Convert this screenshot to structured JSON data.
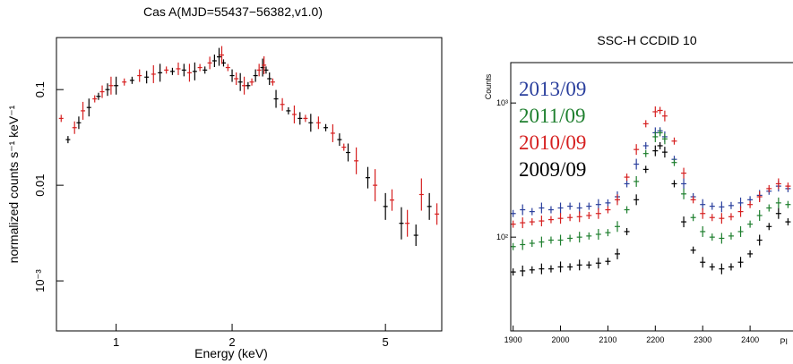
{
  "chart_data": [
    {
      "type": "scatter",
      "title": "Cas A(MJD=55437−56382,v1.0)",
      "xlabel": "Energy (keV)",
      "ylabel": "normalized counts s⁻¹ keV⁻¹",
      "x_scale": "log",
      "y_scale": "log",
      "xlim": [
        0.7,
        7.0
      ],
      "ylim": [
        0.0003,
        0.35
      ],
      "x_ticks": [
        1,
        2,
        5
      ],
      "x_tick_labels": [
        "1",
        "2",
        "5"
      ],
      "y_ticks": [
        0.001,
        0.01,
        0.1
      ],
      "y_tick_labels": [
        "10⁻³",
        "0.01",
        "0.1"
      ],
      "grid": false,
      "series": [
        {
          "color": "#000000",
          "x": [
            0.75,
            0.8,
            0.85,
            0.9,
            0.95,
            1.0,
            1.1,
            1.2,
            1.3,
            1.4,
            1.5,
            1.6,
            1.7,
            1.8,
            1.85,
            1.9,
            2.0,
            2.1,
            2.2,
            2.3,
            2.4,
            2.45,
            2.5,
            2.6,
            2.8,
            3.0,
            3.2,
            3.5,
            3.8,
            4.0,
            4.5,
            5.0,
            5.5,
            6.0,
            6.5
          ],
          "y": [
            0.03,
            0.045,
            0.065,
            0.085,
            0.1,
            0.11,
            0.125,
            0.135,
            0.15,
            0.155,
            0.16,
            0.155,
            0.16,
            0.2,
            0.22,
            0.19,
            0.14,
            0.12,
            0.11,
            0.14,
            0.17,
            0.16,
            0.13,
            0.08,
            0.06,
            0.05,
            0.045,
            0.04,
            0.03,
            0.022,
            0.012,
            0.006,
            0.004,
            0.003,
            0.006
          ]
        },
        {
          "color": "#d62020",
          "x": [
            0.72,
            0.78,
            0.82,
            0.88,
            0.92,
            0.97,
            1.05,
            1.15,
            1.25,
            1.35,
            1.45,
            1.55,
            1.65,
            1.75,
            1.88,
            1.95,
            2.05,
            2.15,
            2.25,
            2.35,
            2.42,
            2.55,
            2.7,
            2.9,
            3.1,
            3.35,
            3.65,
            3.9,
            4.2,
            4.7,
            5.2,
            5.7,
            6.2,
            6.8
          ],
          "y": [
            0.05,
            0.04,
            0.06,
            0.08,
            0.095,
            0.11,
            0.12,
            0.14,
            0.145,
            0.16,
            0.165,
            0.15,
            0.17,
            0.19,
            0.23,
            0.17,
            0.13,
            0.11,
            0.12,
            0.16,
            0.18,
            0.12,
            0.07,
            0.055,
            0.05,
            0.045,
            0.035,
            0.025,
            0.018,
            0.01,
            0.007,
            0.004,
            0.008,
            0.005
          ]
        }
      ]
    },
    {
      "type": "scatter",
      "title": "SSC-H CCDID 10",
      "xlabel": "PI",
      "ylabel": "Counts",
      "y_scale": "log",
      "xlim": [
        1895,
        2500
      ],
      "ylim": [
        20,
        2000
      ],
      "x_ticks": [
        1900,
        2000,
        2100,
        2200,
        2300,
        2400
      ],
      "x_tick_labels": [
        "1900",
        "2000",
        "2100",
        "2200",
        "2300",
        "2400"
      ],
      "y_ticks": [
        100,
        1000
      ],
      "y_tick_labels": [
        "10²",
        "10³"
      ],
      "grid": false,
      "legend_position": "top-left",
      "series": [
        {
          "name": "2013/09",
          "color": "#2a3f9d",
          "x": [
            1900,
            1920,
            1940,
            1960,
            1980,
            2000,
            2020,
            2040,
            2060,
            2080,
            2100,
            2120,
            2140,
            2160,
            2180,
            2200,
            2210,
            2220,
            2240,
            2260,
            2280,
            2300,
            2320,
            2340,
            2360,
            2380,
            2400,
            2420,
            2440,
            2460,
            2480,
            2500
          ],
          "y": [
            150,
            160,
            155,
            165,
            160,
            165,
            170,
            165,
            170,
            175,
            180,
            200,
            250,
            350,
            480,
            600,
            620,
            560,
            380,
            250,
            200,
            175,
            170,
            168,
            172,
            180,
            190,
            205,
            220,
            240,
            230,
            210
          ]
        },
        {
          "name": "2011/09",
          "color": "#1e7f2e",
          "x": [
            1900,
            1920,
            1940,
            1960,
            1980,
            2000,
            2020,
            2040,
            2060,
            2080,
            2100,
            2120,
            2140,
            2160,
            2180,
            2200,
            2210,
            2220,
            2240,
            2260,
            2280,
            2300,
            2320,
            2340,
            2360,
            2380,
            2400,
            2420,
            2440,
            2460,
            2480,
            2500
          ],
          "y": [
            85,
            88,
            90,
            92,
            95,
            95,
            98,
            100,
            102,
            105,
            108,
            120,
            160,
            260,
            420,
            560,
            600,
            540,
            360,
            210,
            140,
            110,
            100,
            98,
            102,
            110,
            125,
            145,
            165,
            180,
            175,
            160
          ]
        },
        {
          "name": "2010/09",
          "color": "#d62020",
          "x": [
            1900,
            1920,
            1940,
            1960,
            1980,
            2000,
            2020,
            2040,
            2060,
            2080,
            2100,
            2120,
            2140,
            2160,
            2180,
            2200,
            2210,
            2220,
            2240,
            2260,
            2280,
            2300,
            2320,
            2340,
            2360,
            2380,
            2400,
            2420,
            2440,
            2460,
            2480,
            2500
          ],
          "y": [
            125,
            128,
            130,
            132,
            135,
            138,
            140,
            142,
            145,
            150,
            160,
            190,
            280,
            450,
            700,
            860,
            880,
            800,
            520,
            300,
            190,
            150,
            140,
            138,
            142,
            155,
            175,
            200,
            230,
            250,
            240,
            220
          ]
        },
        {
          "name": "2009/09",
          "color": "#000000",
          "x": [
            1900,
            1920,
            1940,
            1960,
            1980,
            2000,
            2020,
            2040,
            2060,
            2080,
            2100,
            2120,
            2140,
            2160,
            2180,
            2200,
            2210,
            2220,
            2240,
            2260,
            2280,
            2300,
            2320,
            2340,
            2360,
            2380,
            2400,
            2420,
            2440,
            2460,
            2480,
            2500
          ],
          "y": [
            55,
            56,
            57,
            58,
            58,
            60,
            60,
            62,
            62,
            64,
            66,
            75,
            110,
            190,
            320,
            440,
            480,
            430,
            250,
            130,
            80,
            65,
            60,
            58,
            60,
            65,
            75,
            95,
            120,
            150,
            130,
            90
          ]
        }
      ]
    }
  ]
}
